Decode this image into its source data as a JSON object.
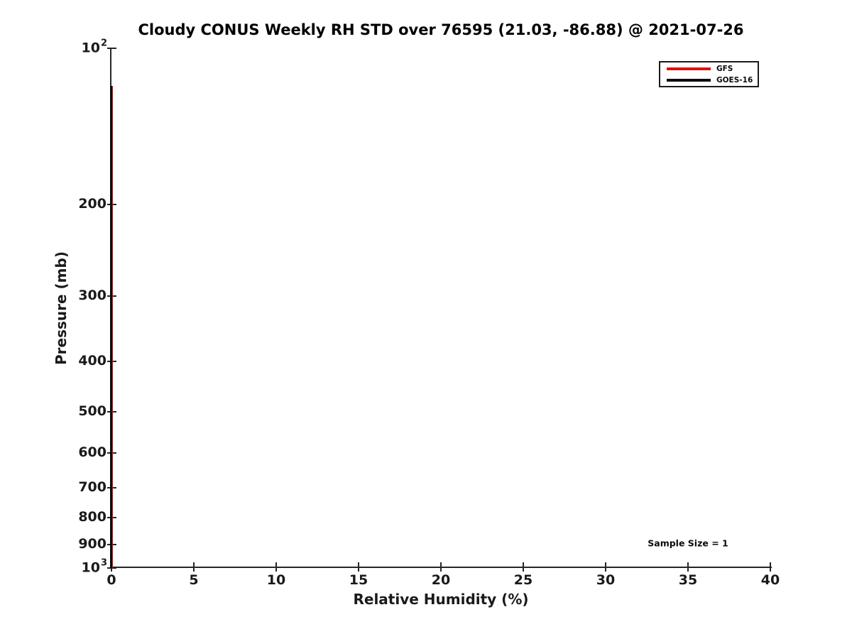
{
  "figure": {
    "title": "Cloudy CONUS Weekly RH STD over 76595 (21.03, -86.88) @ 2021-07-26",
    "xlabel": "Relative Humidity (%)",
    "ylabel": "Pressure (mb)",
    "annotation_text": "Sample Size = 1"
  },
  "colors": {
    "gfs_red": "#dd1111",
    "goes_black": "#0a0a0a",
    "text": "#1a1a1a",
    "spine": "#262626",
    "background": "#ffffff"
  },
  "chart_data": {
    "type": "line",
    "title": "Cloudy CONUS Weekly RH STD over 76595 (21.03, -86.88) @ 2021-07-26",
    "xlabel": "Relative Humidity (%)",
    "ylabel": "Pressure (mb)",
    "x_scale": "linear",
    "xlim": [
      0,
      40
    ],
    "x_ticks": [
      0,
      5,
      10,
      15,
      20,
      25,
      30,
      35,
      40
    ],
    "y_scale": "log",
    "ylim": [
      100,
      1000
    ],
    "y_axis_inverted": true,
    "y_ticks": [
      {
        "value": 100,
        "label": "10^2"
      },
      {
        "value": 200,
        "label": "200"
      },
      {
        "value": 300,
        "label": "300"
      },
      {
        "value": 400,
        "label": "400"
      },
      {
        "value": 500,
        "label": "500"
      },
      {
        "value": 600,
        "label": "600"
      },
      {
        "value": 700,
        "label": "700"
      },
      {
        "value": 800,
        "label": "800"
      },
      {
        "value": 900,
        "label": "900"
      },
      {
        "value": 1000,
        "label": "10^3"
      }
    ],
    "grid": false,
    "legend": {
      "position": "upper right",
      "entries": [
        "GFS",
        "GOES-16"
      ]
    },
    "series": [
      {
        "name": "GFS",
        "color": "#dd1111",
        "rh_std": 0,
        "points": [
          [
            0,
            118
          ],
          [
            0,
            1000
          ]
        ]
      },
      {
        "name": "GOES-16",
        "color": "#0a0a0a",
        "rh_std": 0,
        "points": [
          [
            0,
            118
          ],
          [
            0,
            1000
          ]
        ]
      }
    ],
    "annotation": {
      "text": "Sample Size = 1",
      "x": 35,
      "y_pressure": 895
    }
  }
}
